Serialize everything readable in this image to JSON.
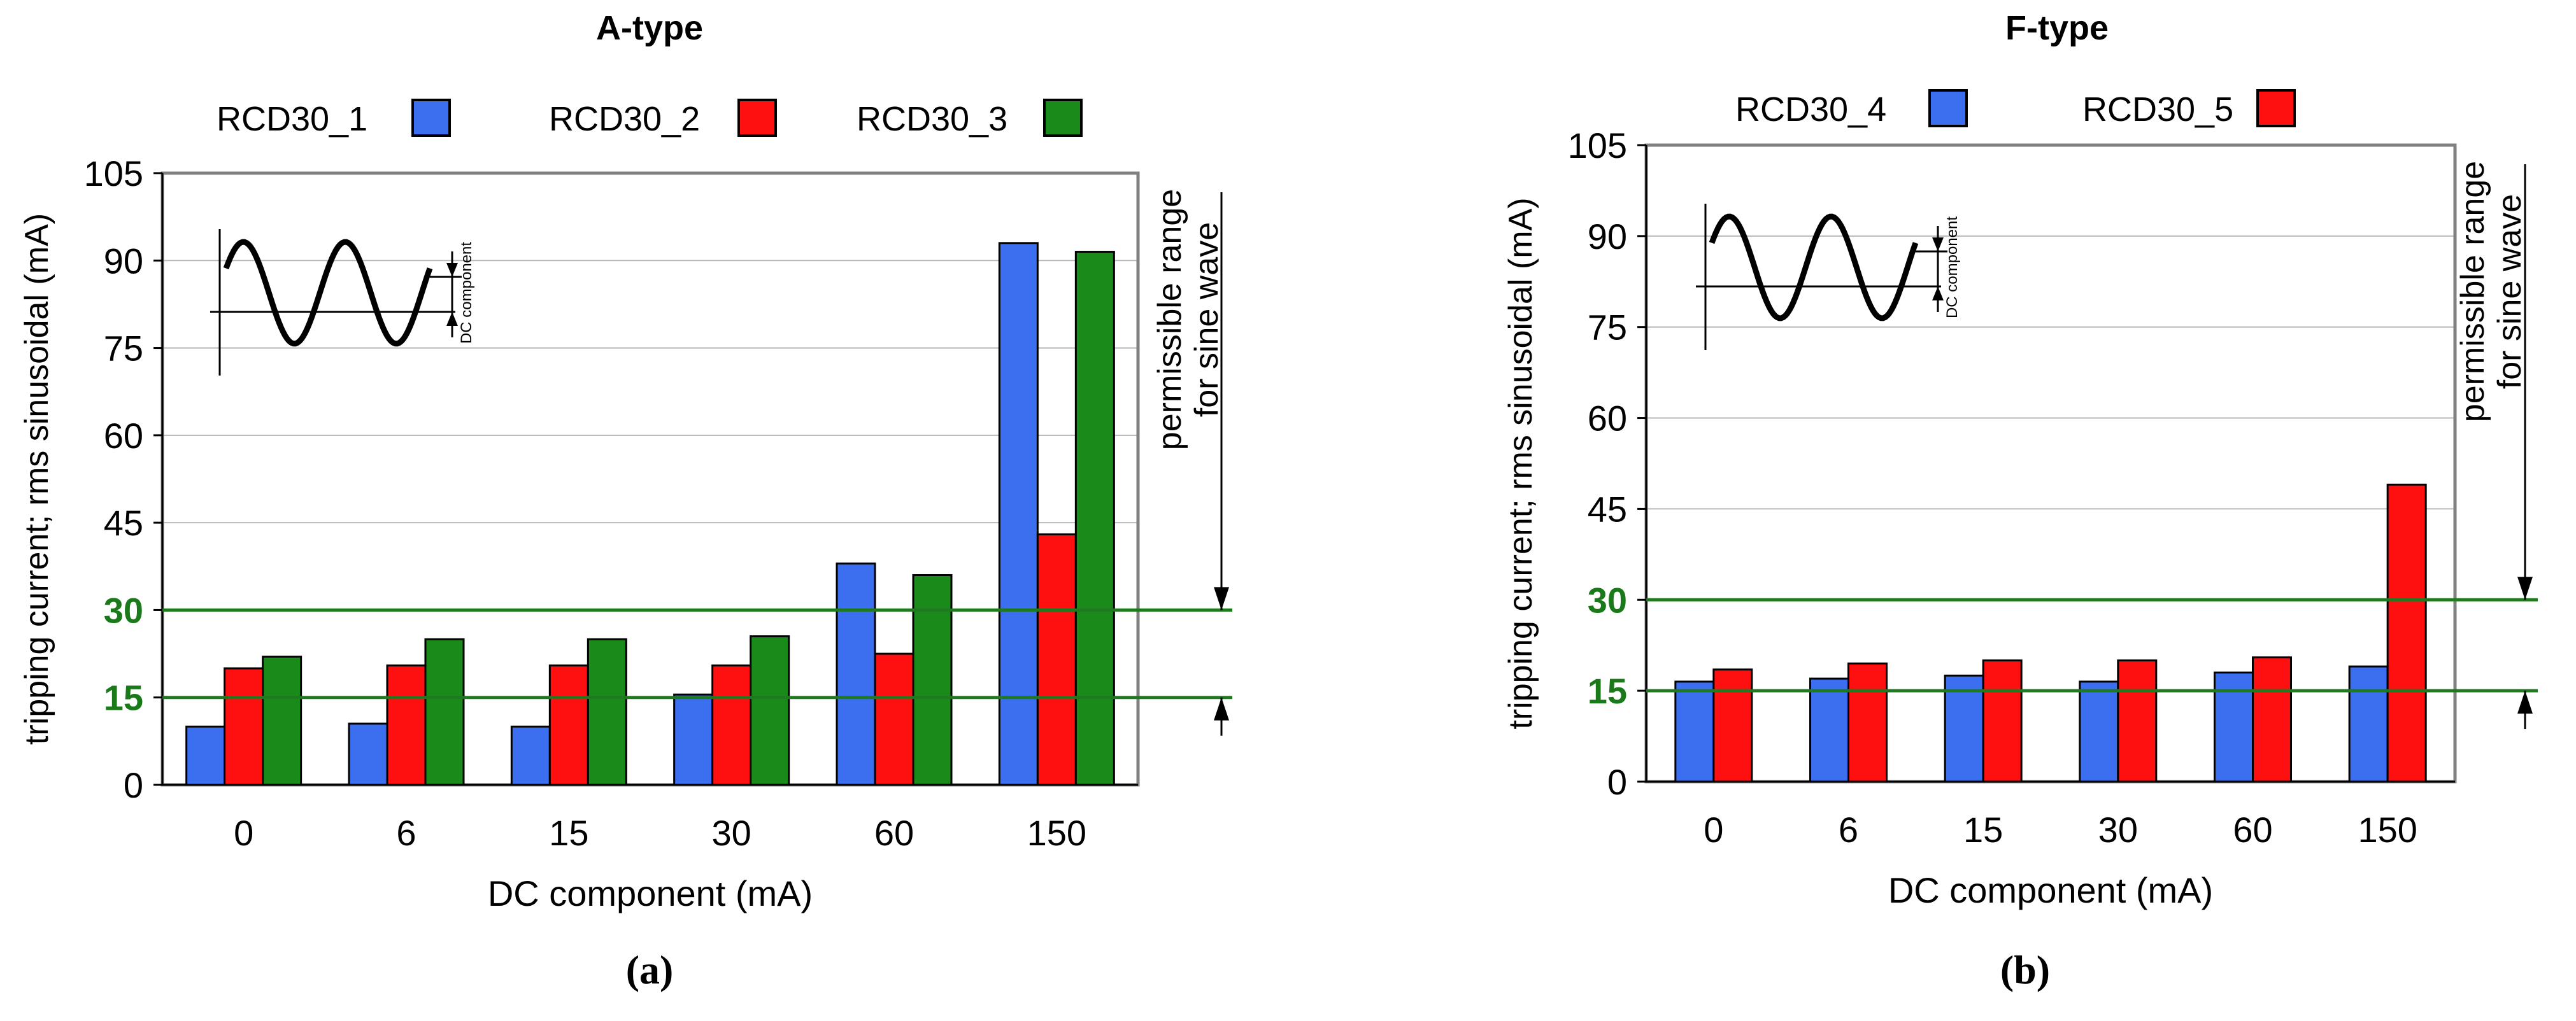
{
  "colors": {
    "rcd30_1": "#3b6ff0",
    "rcd30_2": "#ff1010",
    "rcd30_3": "#1a8a1a",
    "rcd30_4": "#3b6ff0",
    "rcd30_5": "#ff1010",
    "limit_line": "#1f7a1f",
    "frame": "#808080",
    "grid": "#b8b8b8"
  },
  "chart_data": [
    {
      "type": "bar",
      "title": "A-type",
      "panel_label": "(a)",
      "xlabel": "DC component (mA)",
      "ylabel": "tripping current; rms sinusoidal (mA)",
      "ylim": [
        0,
        105
      ],
      "yticks": [
        0,
        15,
        30,
        45,
        60,
        75,
        90,
        105
      ],
      "categories": [
        "0",
        "6",
        "15",
        "30",
        "60",
        "150"
      ],
      "series": [
        {
          "name": "RCD30_1",
          "color": "#3b6ff0",
          "values": [
            10,
            10.5,
            10,
            15.5,
            38,
            93
          ]
        },
        {
          "name": "RCD30_2",
          "color": "#ff1010",
          "values": [
            20,
            20.5,
            20.5,
            20.5,
            22.5,
            43
          ]
        },
        {
          "name": "RCD30_3",
          "color": "#1a8a1a",
          "values": [
            22,
            25,
            25,
            25.5,
            36,
            91.5
          ]
        }
      ],
      "limit_lines": [
        15,
        30
      ],
      "range_label": "permissible range\nfor sine wave",
      "inset_label": "DC component"
    },
    {
      "type": "bar",
      "title": "F-type",
      "panel_label": "(b)",
      "xlabel": "DC component (mA)",
      "ylabel": "tripping current; rms sinusoidal (mA)",
      "ylim": [
        0,
        105
      ],
      "yticks": [
        0,
        15,
        30,
        45,
        60,
        75,
        90,
        105
      ],
      "categories": [
        "0",
        "6",
        "15",
        "30",
        "60",
        "150"
      ],
      "series": [
        {
          "name": "RCD30_4",
          "color": "#3b6ff0",
          "values": [
            16.5,
            17,
            17.5,
            16.5,
            18,
            19
          ]
        },
        {
          "name": "RCD30_5",
          "color": "#ff1010",
          "values": [
            18.5,
            19.5,
            20,
            20,
            20.5,
            49
          ]
        }
      ],
      "limit_lines": [
        15,
        30
      ],
      "range_label": "permissible range\nfor sine wave",
      "inset_label": "DC component"
    }
  ]
}
